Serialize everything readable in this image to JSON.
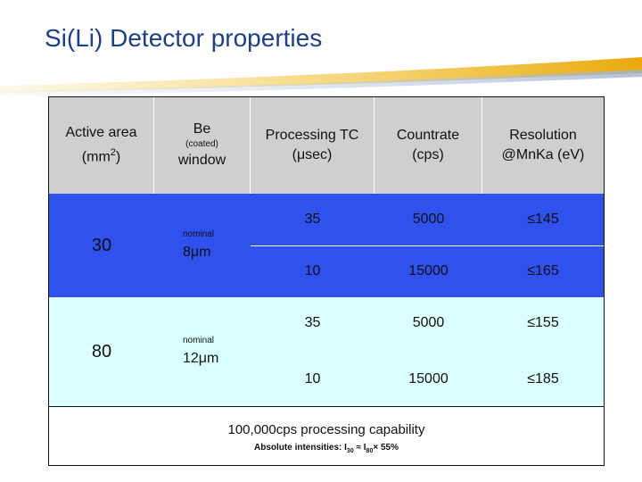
{
  "title": "Si(Li) Detector properties",
  "table": {
    "headers": {
      "active_area": "Active area",
      "active_area_unit": "(mm",
      "active_area_exp": "2",
      "active_area_close": ")",
      "be": "Be",
      "coated": "(coated)",
      "window": "window",
      "processing_tc": "Processing TC",
      "processing_tc_unit": "(μsec)",
      "countrate": "Countrate",
      "countrate_unit": "(cps)",
      "resolution": "Resolution",
      "resolution_unit": "@MnKa (eV)"
    },
    "groups": [
      {
        "area": "30",
        "nominal": "nominal",
        "window": "8μm",
        "rows": [
          {
            "tc": "35",
            "countrate": "5000",
            "resolution": "≤145"
          },
          {
            "tc": "10",
            "countrate": "15000",
            "resolution": "≤165"
          }
        ]
      },
      {
        "area": "80",
        "nominal": "nominal",
        "window": "12μm",
        "rows": [
          {
            "tc": "35",
            "countrate": "5000",
            "resolution": "≤155"
          },
          {
            "tc": "10",
            "countrate": "15000",
            "resolution": "≤185"
          }
        ]
      }
    ],
    "footer": {
      "main": "100,000cps processing capability",
      "sub_prefix": "Absolute intensities: I",
      "sub_30": "30",
      "sub_approx": " ≈ I",
      "sub_80": "80",
      "sub_suffix": "× 55%"
    }
  },
  "colors": {
    "title": "#1c3f8e",
    "header_bg": "#cfcfcf",
    "row_30_bg": "#2f51ee",
    "row_80_bg": "#dbffff"
  }
}
